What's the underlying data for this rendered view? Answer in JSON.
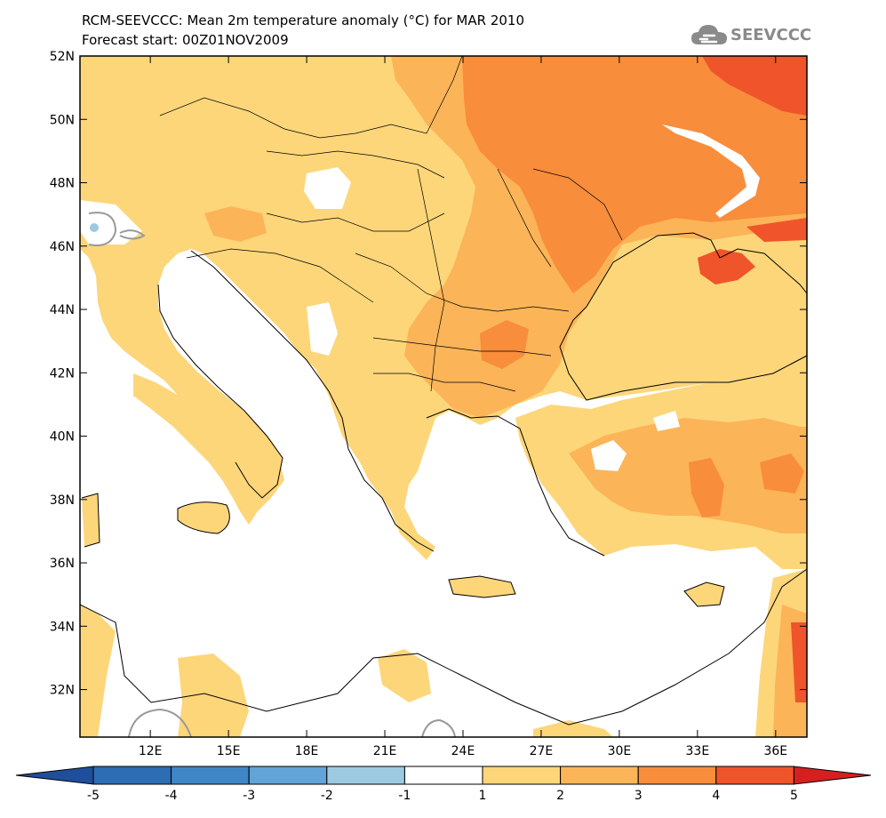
{
  "header": {
    "title_line1": "RCM-SEEVCCC: Mean 2m temperature anomaly (°C) for MAR 2010",
    "title_line2": "Forecast start: 00Z01NOV2009",
    "logo_text": "SEEVCCC",
    "logo_icon": "cloud-icon"
  },
  "map": {
    "lon_range": [
      9.3,
      37.2
    ],
    "lat_range": [
      30.5,
      52.0
    ],
    "lat_ticks": [
      {
        "value": 52,
        "label": "52N"
      },
      {
        "value": 50,
        "label": "50N"
      },
      {
        "value": 48,
        "label": "48N"
      },
      {
        "value": 46,
        "label": "46N"
      },
      {
        "value": 44,
        "label": "44N"
      },
      {
        "value": 42,
        "label": "42N"
      },
      {
        "value": 40,
        "label": "40N"
      },
      {
        "value": 38,
        "label": "38N"
      },
      {
        "value": 36,
        "label": "36N"
      },
      {
        "value": 34,
        "label": "34N"
      },
      {
        "value": 32,
        "label": "32N"
      }
    ],
    "lon_ticks": [
      {
        "value": 12,
        "label": "12E"
      },
      {
        "value": 15,
        "label": "15E"
      },
      {
        "value": 18,
        "label": "18E"
      },
      {
        "value": 21,
        "label": "21E"
      },
      {
        "value": 24,
        "label": "24E"
      },
      {
        "value": 27,
        "label": "27E"
      },
      {
        "value": 30,
        "label": "30E"
      },
      {
        "value": 33,
        "label": "33E"
      },
      {
        "value": 36,
        "label": "36E"
      }
    ]
  },
  "colorbar": {
    "labels": [
      "-5",
      "-4",
      "-3",
      "-2",
      "-1",
      "1",
      "2",
      "3",
      "4",
      "5"
    ],
    "colors": {
      "below": "#1f4e9a",
      "c1": "#2c6db3",
      "c2": "#3f86c6",
      "c3": "#62a3d8",
      "c4": "#9ecae1",
      "c5": "#ffffff",
      "c6": "#fdd67a",
      "c7": "#fcb458",
      "c8": "#f88d3c",
      "c9": "#f0542a",
      "above": "#d42020"
    }
  },
  "anomaly_colors": {
    "white": "#ffffff",
    "a1": "#fdd67a",
    "a2": "#fcb458",
    "a3": "#f88d3c",
    "a4": "#f0542a",
    "neg": "#9ecae1"
  }
}
